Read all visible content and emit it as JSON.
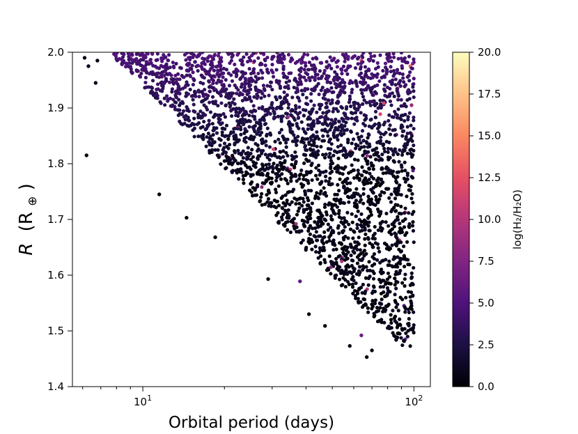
{
  "chart_data": {
    "type": "scatter",
    "xlabel": "Orbital period (days)",
    "ylabel_main": "R",
    "ylabel_unit": "(R",
    "ylabel_sub": "⊕",
    "ylabel_close": ")",
    "xscale": "log",
    "xlim": [
      5.5,
      115
    ],
    "ylim": [
      1.4,
      2.0
    ],
    "x_major_ticks": [
      10,
      100
    ],
    "x_major_base": "10",
    "x_major_exps": [
      "1",
      "2"
    ],
    "x_minor_ticks": [
      6,
      7,
      8,
      9,
      20,
      30,
      40,
      50,
      60,
      70,
      80,
      90
    ],
    "y_ticks": [
      "1.4",
      "1.5",
      "1.6",
      "1.7",
      "1.8",
      "1.9",
      "2.0"
    ],
    "grid": false,
    "colorbar": {
      "label": "log(H₂/H₂O)",
      "min": 0.0,
      "max": 20.0,
      "ticks": [
        "0.0",
        "2.5",
        "5.0",
        "7.5",
        "10.0",
        "12.5",
        "15.0",
        "17.5",
        "20.0"
      ],
      "colormap": "magma"
    },
    "approximate_points": [
      {
        "x": 6.2,
        "y": 1.815,
        "c": 0.5
      },
      {
        "x": 6.1,
        "y": 1.99,
        "c": 0.8
      },
      {
        "x": 6.3,
        "y": 1.975,
        "c": 1.0
      },
      {
        "x": 6.8,
        "y": 1.985,
        "c": 0.6
      },
      {
        "x": 6.7,
        "y": 1.945,
        "c": 1.0
      },
      {
        "x": 11.5,
        "y": 1.745,
        "c": 0.5
      },
      {
        "x": 14.5,
        "y": 1.703,
        "c": 0.5
      },
      {
        "x": 18.5,
        "y": 1.668,
        "c": 0.5
      },
      {
        "x": 29.0,
        "y": 1.593,
        "c": 0.6
      },
      {
        "x": 41.0,
        "y": 1.53,
        "c": 0.5
      },
      {
        "x": 47.0,
        "y": 1.509,
        "c": 0.5
      },
      {
        "x": 58.0,
        "y": 1.473,
        "c": 0.5
      },
      {
        "x": 67.0,
        "y": 1.453,
        "c": 0.5
      },
      {
        "x": 70.0,
        "y": 1.465,
        "c": 0.6
      },
      {
        "x": 64.0,
        "y": 1.492,
        "c": 6.5
      },
      {
        "x": 38.0,
        "y": 1.589,
        "c": 6.0
      },
      {
        "x": 92.0,
        "y": 1.545,
        "c": 5.5
      },
      {
        "x": 99.0,
        "y": 1.502,
        "c": 1.5
      },
      {
        "x": 86.0,
        "y": 1.484,
        "c": 1.0
      },
      {
        "x": 97.0,
        "y": 1.975,
        "c": 13.5
      },
      {
        "x": 64.0,
        "y": 1.985,
        "c": 12.0
      },
      {
        "x": 98.0,
        "y": 1.853,
        "c": 11.0
      },
      {
        "x": 87.0,
        "y": 1.935,
        "c": 9.0
      },
      {
        "x": 98.0,
        "y": 1.905,
        "c": 8.5
      }
    ]
  }
}
